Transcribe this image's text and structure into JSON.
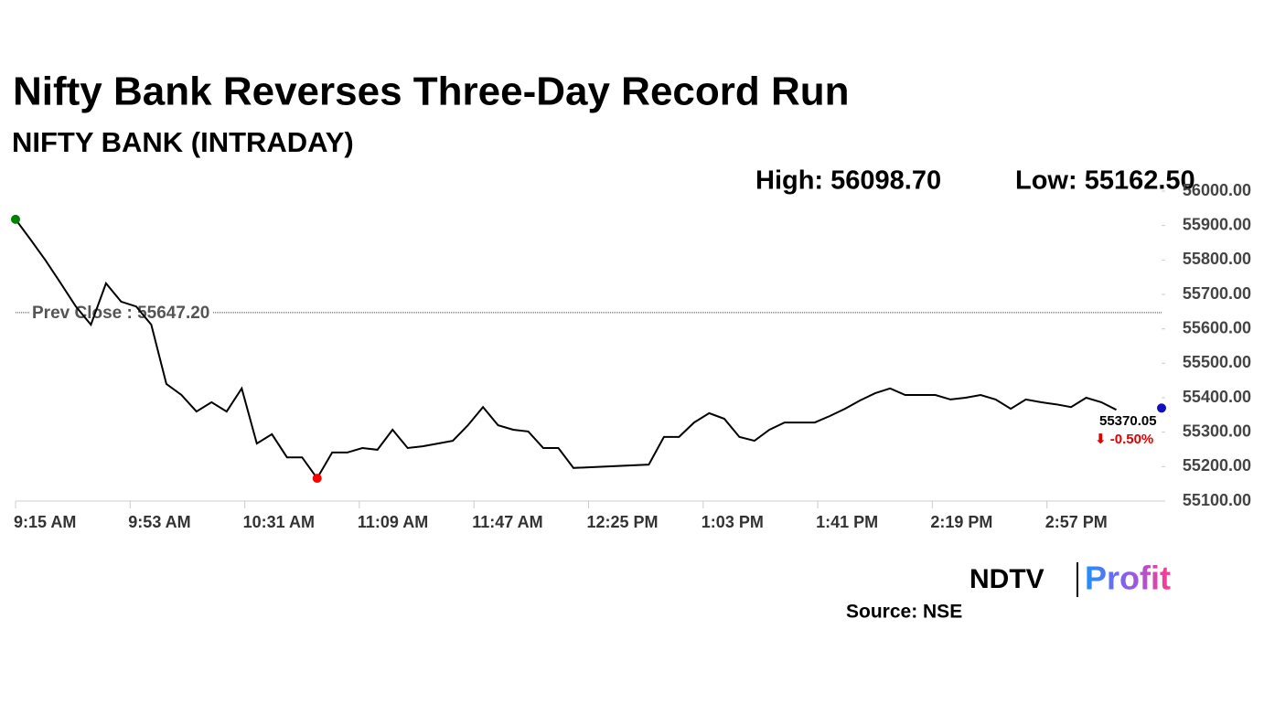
{
  "chart_data": {
    "type": "line",
    "title": "Nifty Bank Reverses Three-Day Record Run",
    "subtitle": "NIFTY BANK (INTRADAY)",
    "high_label": "High: 56098.70",
    "low_label": "Low: 55162.50",
    "color": "#000000",
    "x": [
      "9:15 AM",
      "9:20 AM",
      "9:25 AM",
      "9:30 AM",
      "9:35 AM",
      "9:40 AM",
      "9:45 AM",
      "9:50 AM",
      "9:55 AM",
      "10:00 AM",
      "10:05 AM",
      "10:10 AM",
      "10:15 AM",
      "10:20 AM",
      "10:25 AM",
      "10:30 AM",
      "10:35 AM",
      "10:40 AM",
      "10:45 AM",
      "10:50 AM",
      "10:55 AM",
      "11:00 AM",
      "11:05 AM",
      "11:10 AM",
      "11:15 AM",
      "11:20 AM",
      "11:25 AM",
      "11:30 AM",
      "11:35 AM",
      "11:40 AM",
      "11:45 AM",
      "11:50 AM",
      "11:55 AM",
      "12:00 PM",
      "12:05 PM",
      "12:10 PM",
      "12:15 PM",
      "12:20 PM",
      "12:45 PM",
      "12:50 PM",
      "12:55 PM",
      "1:00 PM",
      "1:05 PM",
      "1:10 PM",
      "1:15 PM",
      "1:20 PM",
      "1:25 PM",
      "1:30 PM",
      "1:35 PM",
      "1:40 PM",
      "1:45 PM",
      "1:50 PM",
      "1:55 PM",
      "2:00 PM",
      "2:05 PM",
      "2:10 PM",
      "2:15 PM",
      "2:20 PM",
      "2:25 PM",
      "2:30 PM",
      "2:35 PM",
      "2:40 PM",
      "2:45 PM",
      "2:50 PM",
      "2:55 PM",
      "3:00 PM",
      "3:05 PM",
      "3:10 PM",
      "3:15 PM",
      "3:20 PM"
    ],
    "values": [
      55918,
      55859,
      55798,
      55732,
      55665,
      55612,
      55732,
      55679,
      55665,
      55612,
      55440,
      55408,
      55360,
      55387,
      55360,
      55427,
      55267,
      55294,
      55227,
      55227,
      55166,
      55241,
      55241,
      55254,
      55249,
      55307,
      55254,
      55259,
      55267,
      55275,
      55320,
      55373,
      55320,
      55307,
      55302,
      55254,
      55254,
      55196,
      55206,
      55286,
      55286,
      55328,
      55355,
      55339,
      55286,
      55275,
      55307,
      55328,
      55328,
      55328,
      55347,
      55368,
      55392,
      55413,
      55427,
      55408,
      55408,
      55408,
      55395,
      55400,
      55408,
      55395,
      55368,
      55395,
      55387,
      55381,
      55373,
      55400,
      55387,
      55365
    ],
    "xlim": [
      "9:15 AM",
      "3:35 PM"
    ],
    "xticks": [
      "9:15 AM",
      "9:53 AM",
      "10:31 AM",
      "11:09 AM",
      "11:47 AM",
      "12:25 PM",
      "1:03 PM",
      "1:41 PM",
      "2:19 PM",
      "2:57 PM"
    ],
    "ylim": [
      55100,
      56000
    ],
    "yticks": [
      {
        "value": 55100,
        "label": "55100.00"
      },
      {
        "value": 55200,
        "label": "55200.00"
      },
      {
        "value": 55300,
        "label": "55300.00"
      },
      {
        "value": 55400,
        "label": "55400.00"
      },
      {
        "value": 55500,
        "label": "55500.00"
      },
      {
        "value": 55600,
        "label": "55600.00"
      },
      {
        "value": 55700,
        "label": "55700.00"
      },
      {
        "value": 55800,
        "label": "55800.00"
      },
      {
        "value": 55900,
        "label": "55900.00"
      },
      {
        "value": 56000,
        "label": "56000.00"
      }
    ],
    "prev_close": {
      "value": 55647.2,
      "label": "Prev Close : 55647.20"
    },
    "close": 55370.05,
    "change_label": "⬇ -0.50%",
    "logo": {
      "brand": "NDTV",
      "product": "Profit"
    },
    "source": "Source: NSE"
  }
}
